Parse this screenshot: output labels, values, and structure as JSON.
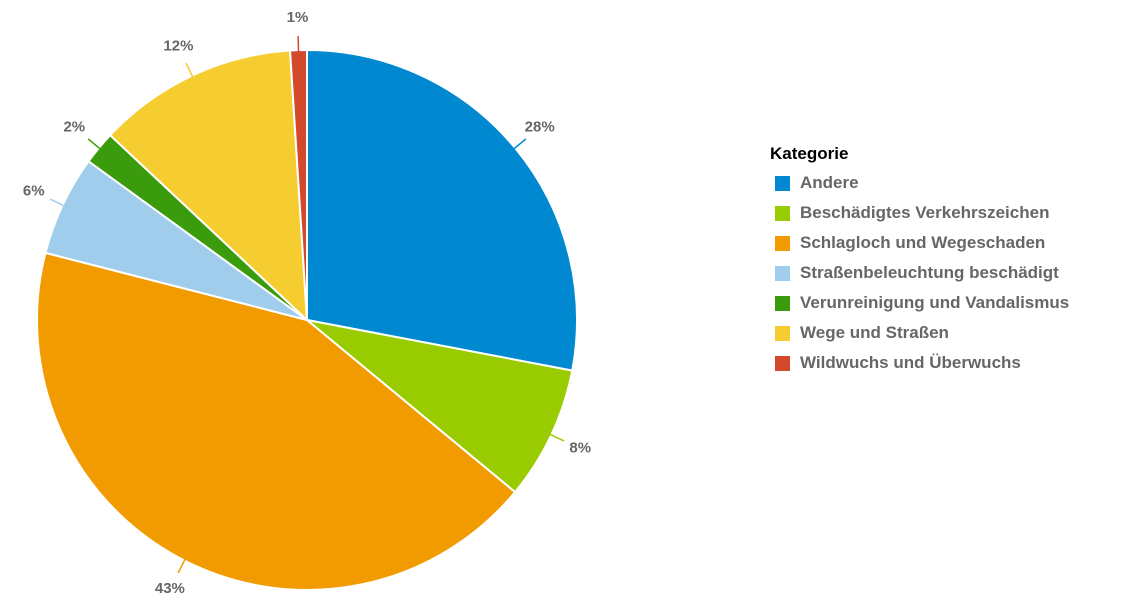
{
  "chart_data": {
    "type": "pie",
    "legend_title": "Kategorie",
    "series": [
      {
        "name": "Andere",
        "color": "#0088d1",
        "values": [
          28
        ],
        "value_labels": [
          "28%"
        ]
      },
      {
        "name": "Beschädigtes Verkehrszeichen",
        "color": "#99cc00",
        "values": [
          8
        ],
        "value_labels": [
          "8%"
        ]
      },
      {
        "name": "Schlagloch und Wegeschaden",
        "color": "#f29b00",
        "values": [
          43
        ],
        "value_labels": [
          "43%"
        ]
      },
      {
        "name": "Straßenbeleuchtung beschädigt",
        "color": "#a1cdec",
        "values": [
          6
        ],
        "value_labels": [
          "6%"
        ]
      },
      {
        "name": "Verunreinigung und Vandalismus",
        "color": "#3a9b0c",
        "values": [
          2
        ],
        "value_labels": [
          "2%"
        ]
      },
      {
        "name": "Wege und Straßen",
        "color": "#f5cd30",
        "values": [
          12
        ],
        "value_labels": [
          "12%"
        ]
      },
      {
        "name": "Wildwuchs und Überwuchs",
        "color": "#d24a2b",
        "values": [
          1
        ],
        "value_labels": [
          "1%"
        ]
      }
    ],
    "legend": "right"
  }
}
